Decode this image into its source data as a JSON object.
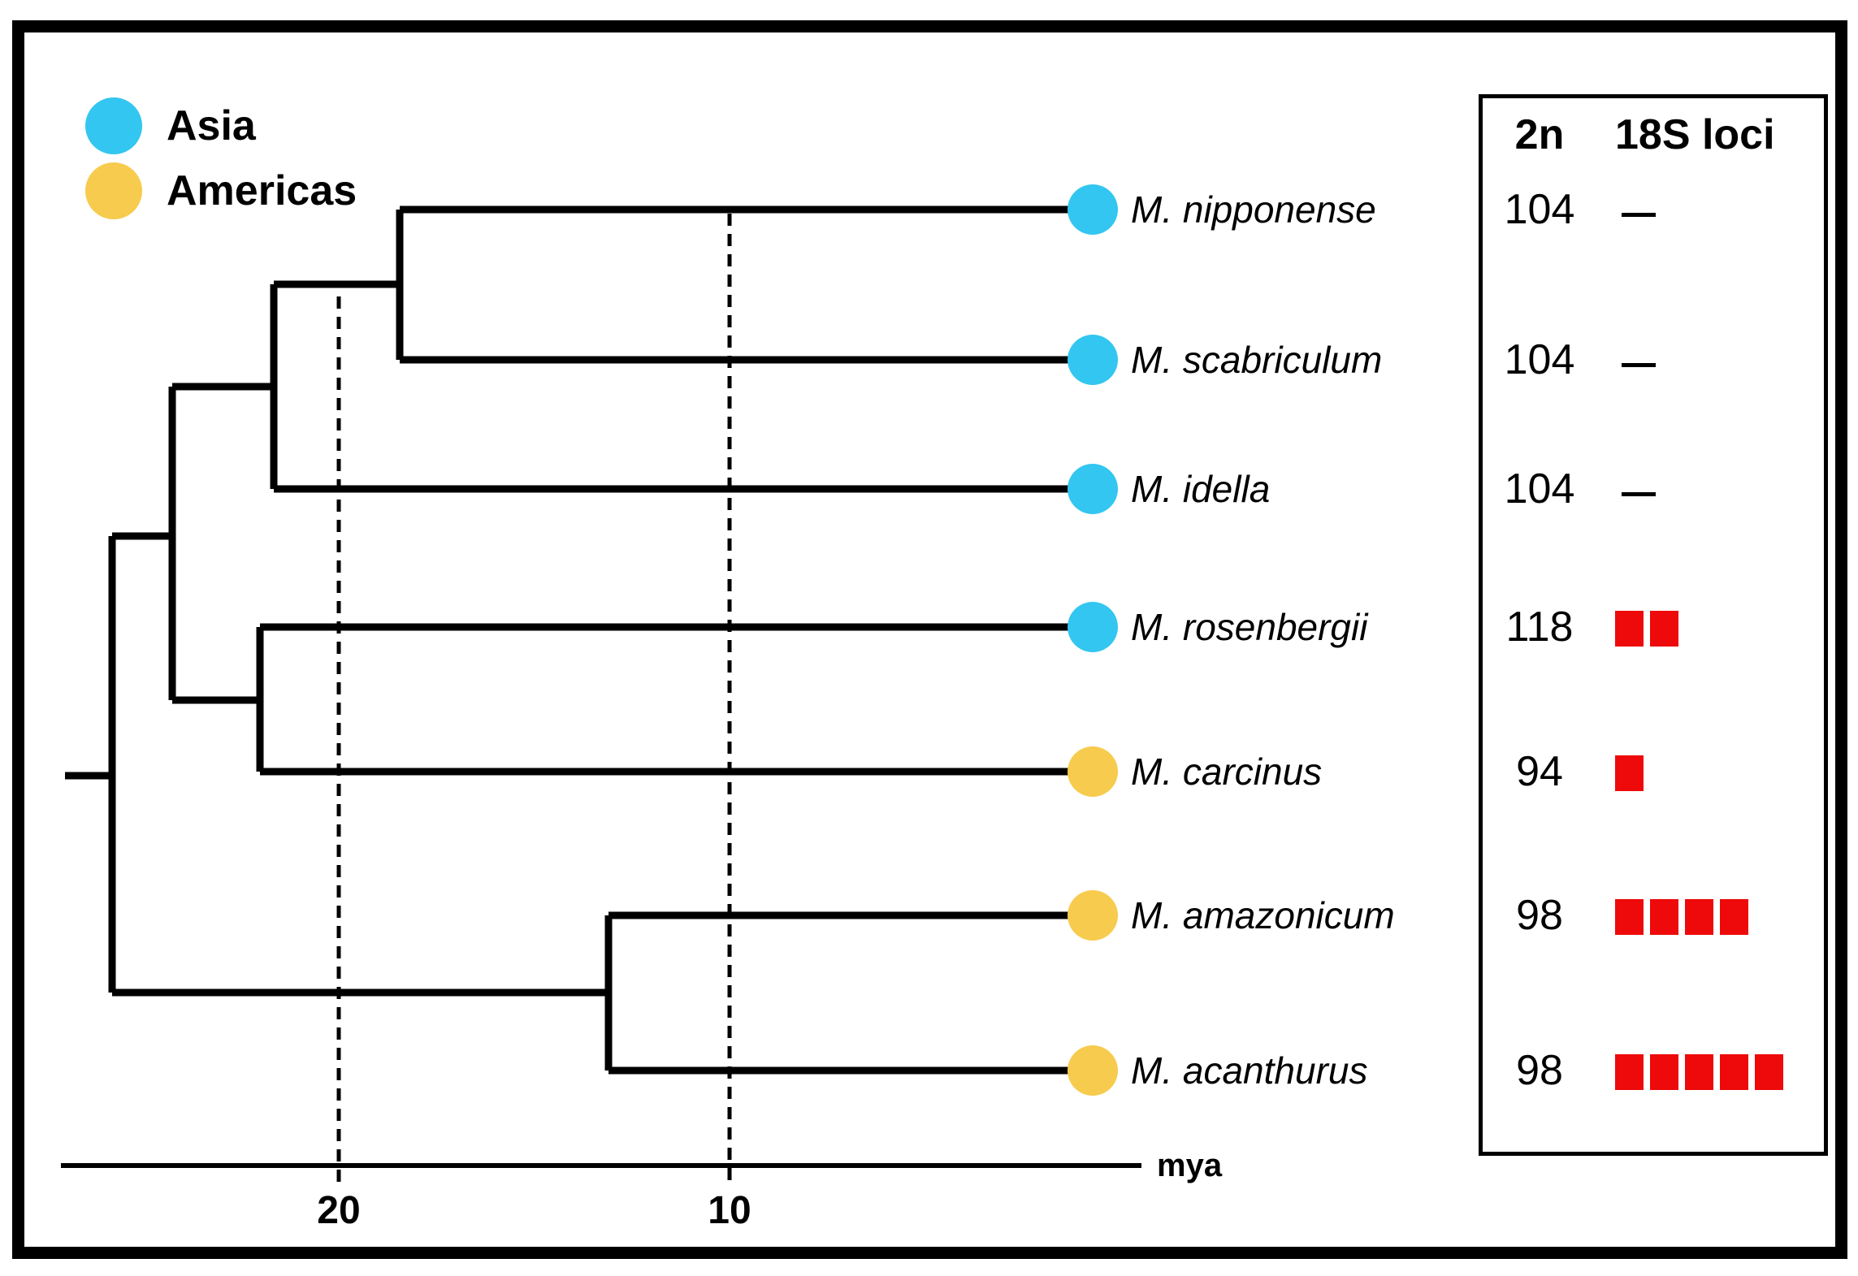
{
  "legend": {
    "items": [
      {
        "label": "Asia",
        "color": "#33C6F0"
      },
      {
        "label": "Americas",
        "color": "#F7CB4D"
      }
    ]
  },
  "species": [
    {
      "label": "M. nipponense",
      "region": "Asia",
      "karyotype_2n": "104",
      "loci_18s": 0
    },
    {
      "label": "M. scabriculum",
      "region": "Asia",
      "karyotype_2n": "104",
      "loci_18s": 0
    },
    {
      "label": "M. idella",
      "region": "Asia",
      "karyotype_2n": "104",
      "loci_18s": 0
    },
    {
      "label": "M. rosenbergii",
      "region": "Asia",
      "karyotype_2n": "118",
      "loci_18s": 2
    },
    {
      "label": "M. carcinus",
      "region": "Americas",
      "karyotype_2n": "94",
      "loci_18s": 1
    },
    {
      "label": "M. amazonicum",
      "region": "Americas",
      "karyotype_2n": "98",
      "loci_18s": 4
    },
    {
      "label": "M. acanthurus",
      "region": "Americas",
      "karyotype_2n": "98",
      "loci_18s": 5
    }
  ],
  "table": {
    "header_2n": "2n",
    "header_loci": "18S loci"
  },
  "axis": {
    "ticks": [
      "20",
      "10"
    ],
    "unit_label": "mya"
  },
  "tree": {
    "topology_newick": "((((M. nipponense, M. scabriculum), M. idella), (M. rosenbergii, M. carcinus)), (M. amazonicum, M. acanthurus))"
  },
  "colors": {
    "locus_marker": "#EE0A0A",
    "line": "#000000"
  }
}
